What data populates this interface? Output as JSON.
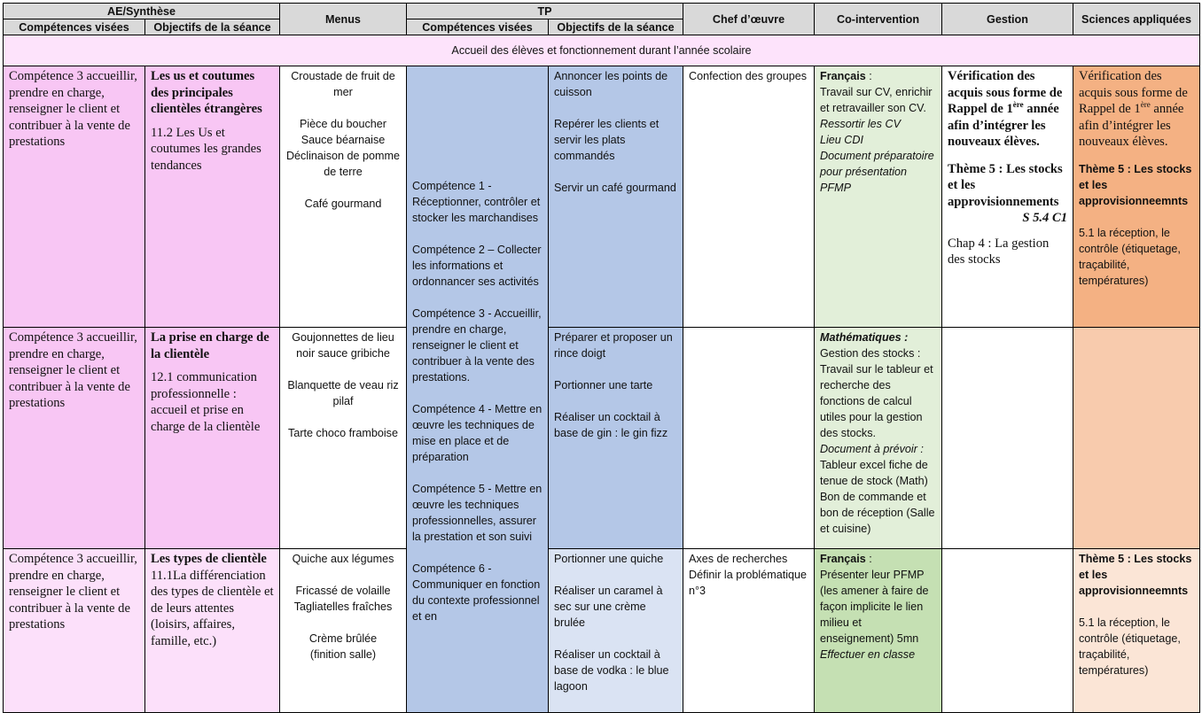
{
  "header": {
    "ae_synthese": "AE/Synthèse",
    "competences_visees": "Compétences visées",
    "objectifs_seance": "Objectifs de la séance",
    "menus": "Menus",
    "tp": "TP",
    "tp_competences_visees": "Compétences visées",
    "tp_objectifs_seance": "Objectifs de la séance",
    "chef_oeuvre": "Chef d’œuvre",
    "co_intervention": "Co-intervention",
    "gestion": "Gestion",
    "sciences_appliquees": "Sciences appliquées"
  },
  "accueil": "Accueil des élèves et fonctionnement durant l’année scolaire",
  "competence3": "Compétence 3 accueillir, prendre en charge, renseigner le client et contribuer à la vente de prestations",
  "rows": [
    {
      "objectif_title": "Les us et coutumes des principales clientèles étrangères",
      "objectif_text": "11.2 Les Us et coutumes les grandes tendances",
      "menus": [
        "Croustade de fruit de mer",
        "Pièce du boucher",
        "Sauce béarnaise",
        "Déclinaison de pomme de terre",
        "Café gourmand"
      ],
      "tp_objectifs": [
        "Annoncer les points de cuisson",
        "Repérer les clients et servir les plats commandés",
        "Servir un café gourmand"
      ],
      "chef_oeuvre": "Confection des groupes",
      "co_intervention": {
        "subject": "Français",
        "text": "Travail sur CV, enrichir et retravailler son CV.",
        "italic": [
          "Ressortir les CV",
          "Lieu CDI",
          "Document préparatoire pour présentation PFMP"
        ]
      },
      "gestion": {
        "verif_a": "Vérification des acquis sous forme de Rappel de 1",
        "verif_sup": "ère",
        "verif_b": " année afin d’intégrer les nouveaux élèves.",
        "theme": "Thème 5 : Les stocks et les approvisionnements",
        "ref": "S 5.4 C1",
        "chap": "Chap 4 : La gestion des stocks"
      },
      "sciences": {
        "verif_a": "Vérification des acquis sous forme de Rappel de 1",
        "verif_sup": "ère",
        "verif_b": " année afin d’intégrer les nouveaux élèves.",
        "theme": "Thème 5 : Les stocks et les approvisionneemnts",
        "text": "5.1 la réception, le contrôle (étiquetage, traçabilité, températures)"
      }
    },
    {
      "objectif_title": "La prise en charge de la clientèle",
      "objectif_text": "12.1 communication professionnelle : accueil et prise en charge de la clientèle",
      "menus": [
        "Goujonnettes de lieu noir sauce gribiche",
        "Blanquette de veau riz pilaf",
        "Tarte choco framboise"
      ],
      "tp_objectifs": [
        "Préparer et proposer un rince doigt",
        "Portionner une tarte",
        "Réaliser un cocktail à base de gin : le gin fizz"
      ],
      "co_intervention": {
        "subject": "Mathématiques :",
        "text": "Gestion des stocks : Travail sur le tableur et recherche des fonctions de calcul utiles pour la gestion des stocks.",
        "italic_label": "Document à prévoir :",
        "text2": "Tableur excel fiche de tenue de stock (Math)",
        "text3": "Bon de commande et bon de réception (Salle et cuisine)"
      }
    },
    {
      "objectif_title": "Les types de clientèle",
      "objectif_text": "11.1La différenciation des types de clientèle et de leurs attentes (loisirs, affaires, famille, etc.)",
      "menus": [
        "Quiche aux légumes",
        "Fricassé de volaille",
        "Tagliatelles fraîches",
        "Crème brûlée",
        "(finition salle)"
      ],
      "tp_objectifs": [
        "Portionner une quiche",
        "Réaliser un caramel à sec sur une crème brulée",
        "Réaliser un cocktail à base de vodka : le blue lagoon"
      ],
      "chef_oeuvre": [
        "Axes de recherches",
        "Définir la problématique n°3"
      ],
      "co_intervention": {
        "subject": "Français",
        "text": "Présenter leur PFMP (les amener à faire de façon implicite  le lien milieu et enseignement) 5mn",
        "italic": "Effectuer en classe"
      },
      "sciences": {
        "theme": "Thème 5 : Les stocks et les approvisionneemnts",
        "text": "5.1 la réception, le contrôle (étiquetage, traçabilité, températures)"
      }
    }
  ],
  "tp_competences": [
    "Compétence 1 - Réceptionner, contrôler et stocker les marchandises",
    "Compétence 2 – Collecter les informations et ordonnancer ses activités",
    "Compétence 3 - Accueillir, prendre en charge, renseigner le client et contribuer à la vente des prestations.",
    "Compétence 4 - Mettre en œuvre les techniques de mise en place et de préparation",
    "Compétence 5 - Mettre en œuvre les techniques professionnelles, assurer la prestation et son suivi",
    "Compétence 6 - Communiquer en fonction du contexte professionnel et en"
  ]
}
